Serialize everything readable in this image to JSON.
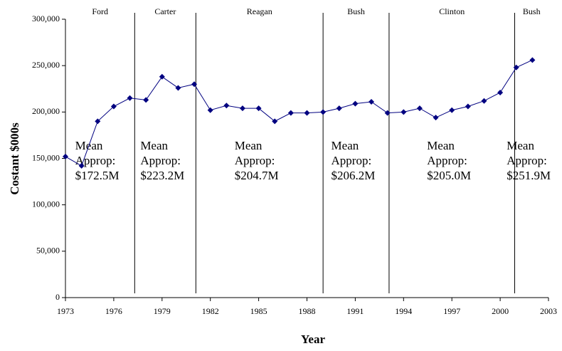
{
  "chart_data": {
    "type": "line",
    "y_label": "Costant $000s",
    "x_label": "Year",
    "x": [
      1973,
      1974,
      1975,
      1976,
      1977,
      1978,
      1979,
      1980,
      1981,
      1982,
      1983,
      1984,
      1985,
      1986,
      1987,
      1988,
      1989,
      1990,
      1991,
      1992,
      1993,
      1994,
      1995,
      1996,
      1997,
      1998,
      1999,
      2000,
      2001,
      2002
    ],
    "series": [
      {
        "color": "#000080",
        "values": [
          152000,
          142000,
          190000,
          206000,
          215000,
          213000,
          238000,
          226000,
          230000,
          202000,
          207000,
          204000,
          204000,
          190000,
          199000,
          199000,
          200000,
          204000,
          209000,
          211000,
          199000,
          200000,
          204000,
          194000,
          202000,
          206000,
          212000,
          221000,
          248000,
          256000
        ]
      }
    ],
    "xlim": [
      1973,
      2003
    ],
    "xticks": [
      1973,
      1976,
      1979,
      1982,
      1985,
      1988,
      1991,
      1994,
      1997,
      2000,
      2003
    ],
    "ylim": [
      0,
      300000
    ],
    "yticks": [
      0,
      {
        "value": 50000,
        "label": "50,000"
      },
      {
        "value": 100000,
        "label": "100,000"
      },
      {
        "value": 150000,
        "label": "150,000"
      },
      {
        "value": 200000,
        "label": "200,000"
      },
      {
        "value": 250000,
        "label": "250,000"
      },
      {
        "value": 300000,
        "label": "300,000"
      }
    ],
    "eras": [
      {
        "name": "Ford",
        "start": 1973,
        "end": 1977.3,
        "mean": [
          "Mean",
          "Approp:",
          "$172.5M"
        ]
      },
      {
        "name": "Carter",
        "start": 1977.3,
        "end": 1981.1,
        "mean": [
          "Mean",
          "Approp:",
          "$223.2M"
        ]
      },
      {
        "name": "Reagan",
        "start": 1981.1,
        "end": 1989,
        "mean": [
          "Mean",
          "Approp:",
          "$204.7M"
        ]
      },
      {
        "name": "Bush",
        "start": 1989,
        "end": 1993.1,
        "mean": [
          "Mean",
          "Approp:",
          "$206.2M"
        ]
      },
      {
        "name": "Clinton",
        "start": 1993.1,
        "end": 2000.9,
        "mean": [
          "Mean",
          "Approp:",
          "$205.0M"
        ]
      },
      {
        "name": "Bush",
        "start": 2000.9,
        "end": 2003,
        "mean": [
          "Mean",
          "Approp:",
          "$251.9M"
        ]
      }
    ],
    "mean_color": "#1f1fd0"
  }
}
